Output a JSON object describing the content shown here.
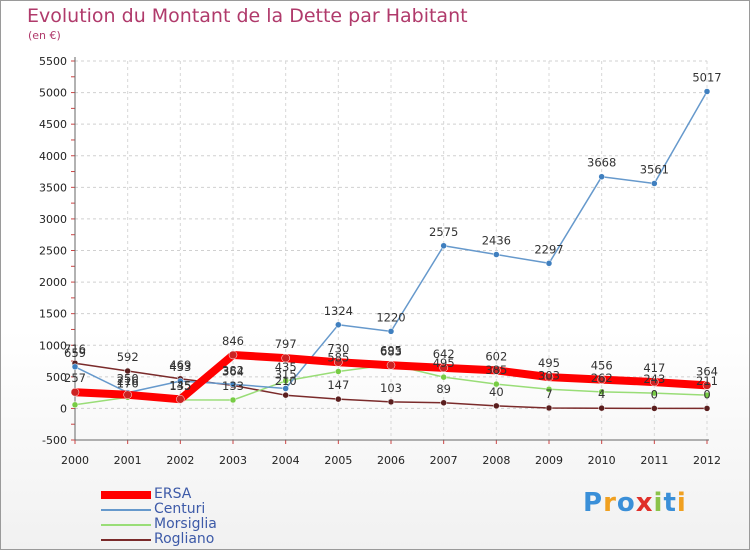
{
  "title": "Evolution du Montant de la Dette par Habitant",
  "subtitle": "(en €)",
  "brand": "Proxiti",
  "colors": {
    "ERSA": "#ff0000",
    "Centuri": "#6699cc",
    "Morsiglia": "#99dd77",
    "Rogliano": "#7a2a2a",
    "title": "#b03a6b"
  },
  "chart_data": {
    "type": "line",
    "x": [
      "2000",
      "2001",
      "2002",
      "2003",
      "2004",
      "2005",
      "2006",
      "2007",
      "2008",
      "2009",
      "2010",
      "2011",
      "2012"
    ],
    "yticks": [
      "5500",
      "5000",
      "4500",
      "4000",
      "3500",
      "3000",
      "2500",
      "2000",
      "1500",
      "1000",
      "500",
      "0",
      "-500"
    ],
    "ylim": [
      -500,
      5500
    ],
    "grid": true,
    "legend_position": "bottom-left",
    "series": [
      {
        "name": "ERSA",
        "values": [
          257,
          216,
          145,
          846,
          797,
          730,
          683,
          642,
          602,
          495,
          456,
          417,
          364
        ]
      },
      {
        "name": "Centuri",
        "values": [
          659,
          250,
          433,
          382,
          315,
          1324,
          1220,
          2575,
          2436,
          2297,
          3668,
          3561,
          5017
        ]
      },
      {
        "name": "Morsiglia",
        "values": [
          57,
          176,
          135,
          133,
          435,
          585,
          695,
          495,
          385,
          303,
          262,
          243,
          211
        ]
      },
      {
        "name": "Rogliano",
        "values": [
          716,
          592,
          469,
          364,
          210,
          147,
          103,
          89,
          40,
          7,
          4,
          0,
          0
        ]
      }
    ],
    "labels": {
      "ERSA": [
        "257",
        "216",
        "145",
        "846",
        "797",
        "730",
        "683",
        "642",
        "602",
        "495",
        "456",
        "417",
        "364"
      ],
      "Centuri": [
        "659",
        "250",
        "433",
        "382",
        "315",
        "1324",
        "1220",
        "2575",
        "2436",
        "2297",
        "3668",
        "3561",
        "5017"
      ],
      "Morsiglia": [
        "",
        "176",
        "135",
        "133",
        "435",
        "585",
        "695",
        "495",
        "385",
        "303",
        "262",
        "243",
        "211"
      ],
      "Rogliano": [
        "716",
        "592",
        "469",
        "364",
        "210",
        "147",
        "103",
        "89",
        "40",
        "7",
        "4",
        "0",
        "0"
      ]
    }
  }
}
